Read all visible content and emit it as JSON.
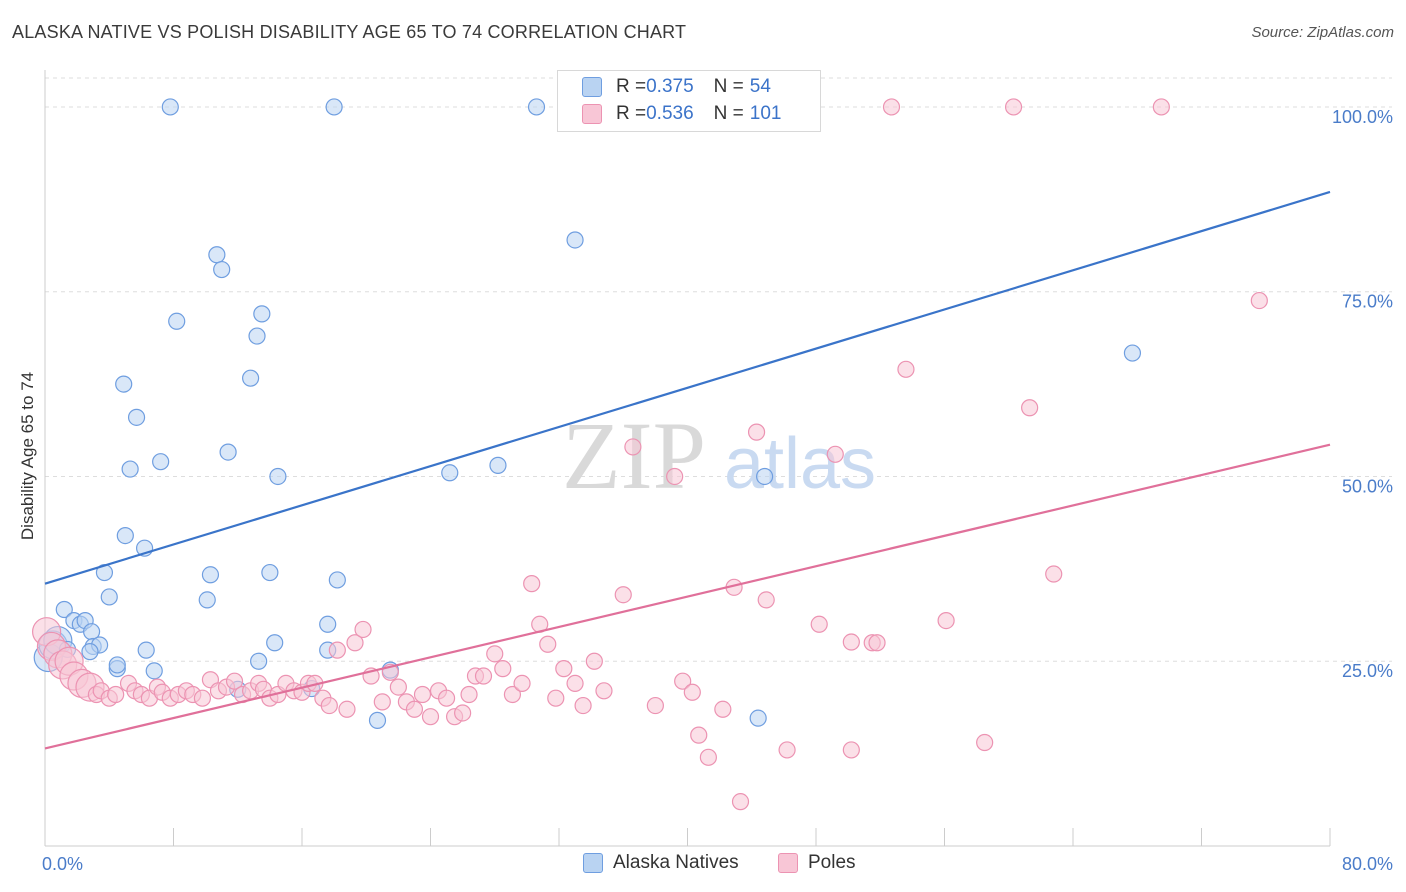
{
  "title": "ALASKA NATIVE VS POLISH DISABILITY AGE 65 TO 74 CORRELATION CHART",
  "source": "Source: ZipAtlas.com",
  "watermark": {
    "zip": "ZIP",
    "atlas": "atlas"
  },
  "colors": {
    "blue": "#3a74c9",
    "blue_fill": "#b9d3f2",
    "blue_stroke": "#6f9ee0",
    "pink": "#e0709a",
    "pink_fill": "#f8c6d6",
    "pink_stroke": "#ec93b2",
    "tick_text": "#4a7cc9",
    "grid": "#dddddd"
  },
  "legend": {
    "rows": [
      {
        "r_label": "R = ",
        "r_value": "0.375",
        "n_label": "N = ",
        "n_value": "54"
      },
      {
        "r_label": "R = ",
        "r_value": "0.536",
        "n_label": "N = ",
        "n_value": "101"
      }
    ]
  },
  "chart_data": {
    "type": "scatter",
    "title": "ALASKA NATIVE VS POLISH DISABILITY AGE 65 TO 74 CORRELATION CHART",
    "ylabel": "Disability Age 65 to 74",
    "xlabel": "",
    "xlim": [
      0,
      80
    ],
    "ylim": [
      0,
      105
    ],
    "x_tick_labels": [
      {
        "value": 0,
        "label": "0.0%"
      },
      {
        "value": 80,
        "label": "80.0%"
      }
    ],
    "y_tick_labels": [
      {
        "value": 25,
        "label": "25.0%"
      },
      {
        "value": 50,
        "label": "50.0%"
      },
      {
        "value": 75,
        "label": "75.0%"
      },
      {
        "value": 100,
        "label": "100.0%"
      }
    ],
    "grid": "horizontal dashed",
    "legend_position": "bottom",
    "series": [
      {
        "name": "Alaska Natives",
        "r": 0.375,
        "n": 54,
        "trend": {
          "x": [
            0,
            80
          ],
          "y": [
            35.5,
            88.5
          ]
        },
        "points": [
          [
            0.2,
            25.5
          ],
          [
            0.5,
            27.2
          ],
          [
            0.8,
            27.8
          ],
          [
            1.2,
            32
          ],
          [
            1.4,
            26.6
          ],
          [
            1.8,
            30.5
          ],
          [
            2.2,
            30
          ],
          [
            2.5,
            30.5
          ],
          [
            2.9,
            29
          ],
          [
            3.0,
            27
          ],
          [
            3.4,
            27.2
          ],
          [
            2.8,
            26.3
          ],
          [
            3.7,
            37
          ],
          [
            4.0,
            33.7
          ],
          [
            4.5,
            24
          ],
          [
            5.0,
            42
          ],
          [
            5.7,
            58
          ],
          [
            5.3,
            51
          ],
          [
            4.9,
            62.5
          ],
          [
            6.2,
            40.3
          ],
          [
            6.8,
            23.7
          ],
          [
            7.2,
            52
          ],
          [
            8.2,
            71
          ],
          [
            7.8,
            100
          ],
          [
            6.3,
            26.5
          ],
          [
            10.7,
            80
          ],
          [
            11.4,
            53.3
          ],
          [
            11.0,
            78
          ],
          [
            10.3,
            36.7
          ],
          [
            10.1,
            33.3
          ],
          [
            13.2,
            69
          ],
          [
            13.5,
            72
          ],
          [
            12.8,
            63.3
          ],
          [
            14.3,
            27.5
          ],
          [
            14.5,
            50
          ],
          [
            14.0,
            37
          ],
          [
            13.3,
            25
          ],
          [
            12.0,
            21.2
          ],
          [
            17.6,
            26.5
          ],
          [
            18.0,
            100
          ],
          [
            18.2,
            36
          ],
          [
            16.6,
            21.3
          ],
          [
            17.6,
            30
          ],
          [
            20.7,
            17
          ],
          [
            21.5,
            23.8
          ],
          [
            25.2,
            50.5
          ],
          [
            28.2,
            51.5
          ],
          [
            30.6,
            100
          ],
          [
            33.0,
            82
          ],
          [
            44.7,
            100
          ],
          [
            44.4,
            17.3
          ],
          [
            44.8,
            50
          ],
          [
            67.7,
            66.7
          ],
          [
            4.5,
            24.5
          ]
        ]
      },
      {
        "name": "Poles",
        "r": 0.536,
        "n": 101,
        "trend": {
          "x": [
            0,
            80
          ],
          "y": [
            13.2,
            54.3
          ]
        },
        "points": [
          [
            0.1,
            29
          ],
          [
            0.4,
            27
          ],
          [
            0.8,
            26
          ],
          [
            1.1,
            24.5
          ],
          [
            1.5,
            25
          ],
          [
            1.8,
            23
          ],
          [
            2.3,
            22
          ],
          [
            2.8,
            21.5
          ],
          [
            3.2,
            20.5
          ],
          [
            3.5,
            21
          ],
          [
            4.0,
            20
          ],
          [
            4.4,
            20.5
          ],
          [
            5.2,
            22
          ],
          [
            5.6,
            21
          ],
          [
            6.0,
            20.5
          ],
          [
            6.5,
            20
          ],
          [
            7.0,
            21.5
          ],
          [
            7.3,
            20.8
          ],
          [
            7.8,
            20
          ],
          [
            8.3,
            20.5
          ],
          [
            8.8,
            21
          ],
          [
            9.2,
            20.5
          ],
          [
            9.8,
            20
          ],
          [
            10.3,
            22.5
          ],
          [
            10.8,
            21
          ],
          [
            11.3,
            21.5
          ],
          [
            11.8,
            22.3
          ],
          [
            12.3,
            20.5
          ],
          [
            12.8,
            21
          ],
          [
            13.3,
            22
          ],
          [
            13.6,
            21.2
          ],
          [
            14.0,
            20
          ],
          [
            14.5,
            20.5
          ],
          [
            15.0,
            22
          ],
          [
            15.5,
            21
          ],
          [
            16.0,
            20.8
          ],
          [
            16.4,
            22
          ],
          [
            16.8,
            22
          ],
          [
            17.3,
            20
          ],
          [
            17.7,
            19
          ],
          [
            18.2,
            26.5
          ],
          [
            18.8,
            18.5
          ],
          [
            19.3,
            27.5
          ],
          [
            19.8,
            29.3
          ],
          [
            20.3,
            23
          ],
          [
            21.0,
            19.5
          ],
          [
            21.5,
            23.5
          ],
          [
            22.0,
            21.5
          ],
          [
            22.5,
            19.5
          ],
          [
            23.0,
            18.5
          ],
          [
            23.5,
            20.5
          ],
          [
            24.0,
            17.5
          ],
          [
            24.5,
            21
          ],
          [
            25.0,
            20
          ],
          [
            25.5,
            17.5
          ],
          [
            26.0,
            18
          ],
          [
            26.4,
            20.5
          ],
          [
            26.8,
            23
          ],
          [
            27.3,
            23
          ],
          [
            28.0,
            26
          ],
          [
            28.5,
            24
          ],
          [
            29.1,
            20.5
          ],
          [
            29.7,
            22
          ],
          [
            30.3,
            35.5
          ],
          [
            30.8,
            30
          ],
          [
            31.3,
            27.3
          ],
          [
            31.8,
            20
          ],
          [
            32.3,
            24
          ],
          [
            33.0,
            22
          ],
          [
            33.5,
            19
          ],
          [
            34.2,
            25
          ],
          [
            34.8,
            21
          ],
          [
            36.0,
            34
          ],
          [
            36.6,
            54
          ],
          [
            38.0,
            19
          ],
          [
            39.2,
            50
          ],
          [
            39.7,
            22.3
          ],
          [
            40.3,
            20.8
          ],
          [
            40.7,
            15
          ],
          [
            41.3,
            12
          ],
          [
            42.2,
            18.5
          ],
          [
            42.9,
            35
          ],
          [
            43.3,
            6
          ],
          [
            44.3,
            56
          ],
          [
            44.9,
            33.3
          ],
          [
            46.2,
            13
          ],
          [
            48.2,
            30
          ],
          [
            49.2,
            53
          ],
          [
            50.2,
            13
          ],
          [
            51.5,
            27.5
          ],
          [
            51.8,
            27.5
          ],
          [
            52.7,
            100
          ],
          [
            53.6,
            64.5
          ],
          [
            56.1,
            30.5
          ],
          [
            58.5,
            14
          ],
          [
            60.3,
            100
          ],
          [
            61.3,
            59.3
          ],
          [
            62.8,
            36.8
          ],
          [
            69.5,
            100
          ],
          [
            75.6,
            73.8
          ],
          [
            50.2,
            27.6
          ]
        ]
      }
    ]
  },
  "bottom_legend": [
    {
      "label": "Alaska Natives"
    },
    {
      "label": "Poles"
    }
  ]
}
